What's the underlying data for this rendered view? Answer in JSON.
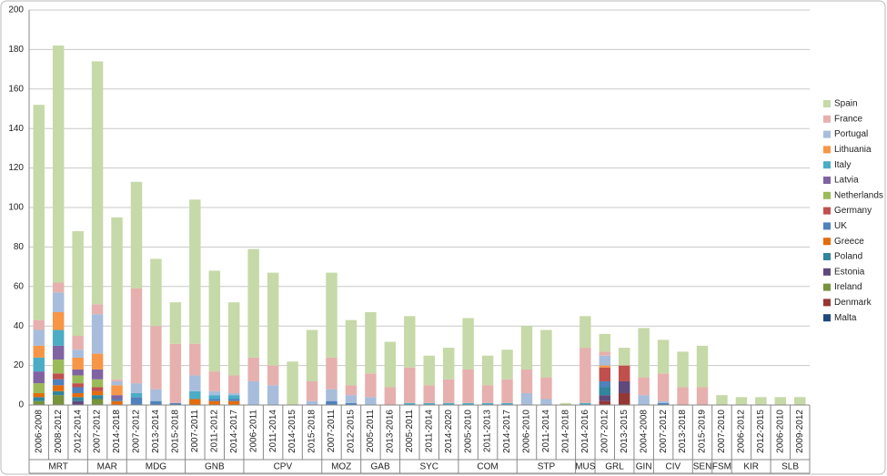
{
  "chart_data": {
    "type": "stacked-bar",
    "groups": [
      {
        "name": "MRT",
        "categories": [
          "2006-2008",
          "2008-2012",
          "2012-2014"
        ]
      },
      {
        "name": "MAR",
        "categories": [
          "2007-2012",
          "2014-2018"
        ]
      },
      {
        "name": "MDG",
        "categories": [
          "2007-2012",
          "2013-2014",
          "2015-2018"
        ]
      },
      {
        "name": "GNB",
        "categories": [
          "2007-2011",
          "2011-2012",
          "2014-2017"
        ]
      },
      {
        "name": "CPV",
        "categories": [
          "2006-2011",
          "2011-2014",
          "2014-2015",
          "2015-2018"
        ]
      },
      {
        "name": "MOZ",
        "categories": [
          "2007-2011",
          "2012-2015"
        ]
      },
      {
        "name": "GAB",
        "categories": [
          "2005-2011",
          "2013-2016"
        ]
      },
      {
        "name": "SYC",
        "categories": [
          "2005-2011",
          "2011-2014",
          "2014-2020"
        ]
      },
      {
        "name": "COM",
        "categories": [
          "2005-2010",
          "2011-2013",
          "2014-2017"
        ]
      },
      {
        "name": "STP",
        "categories": [
          "2006-2010",
          "2011-2014",
          "2014-2018"
        ]
      },
      {
        "name": "MUS",
        "categories": [
          "2014-2016"
        ]
      },
      {
        "name": "GRL",
        "categories": [
          "2007-2012",
          "2013-2015"
        ]
      },
      {
        "name": "GIN",
        "categories": [
          "2004-2008"
        ]
      },
      {
        "name": "CIV",
        "categories": [
          "2007-2012",
          "2013-2018"
        ]
      },
      {
        "name": "SEN",
        "categories": [
          "2015-2019"
        ]
      },
      {
        "name": "FSM",
        "categories": [
          "2007-2010"
        ]
      },
      {
        "name": "KIR",
        "categories": [
          "2006-2012",
          "2012-2015"
        ]
      },
      {
        "name": "SLB",
        "categories": [
          "2006-2010",
          "2009-2012"
        ]
      }
    ],
    "series": [
      {
        "name": "Malta",
        "color": "#1f497d",
        "values": [
          0,
          0,
          0,
          0,
          0,
          0,
          0,
          0,
          0,
          0,
          0,
          0,
          0,
          0,
          0,
          0,
          0,
          0,
          0,
          0,
          0,
          0,
          0,
          0,
          0,
          0,
          0,
          0,
          0,
          0,
          0,
          0,
          0,
          0,
          0,
          0,
          0,
          0,
          0,
          0
        ]
      },
      {
        "name": "Denmark",
        "color": "#953735",
        "values": [
          0,
          0,
          0,
          0,
          0,
          0,
          0,
          0,
          0,
          0,
          0,
          0,
          0,
          0,
          0,
          0,
          0,
          0,
          0,
          0,
          0,
          0,
          0,
          0,
          0,
          0,
          0,
          0,
          0,
          2,
          6,
          0,
          0,
          0,
          0,
          0,
          0,
          0,
          0,
          0
        ]
      },
      {
        "name": "Ireland",
        "color": "#77933c",
        "values": [
          2,
          5,
          0,
          3,
          0,
          0,
          0,
          0,
          0,
          0,
          0,
          0,
          0,
          0,
          0,
          0,
          0,
          0,
          0,
          0,
          0,
          0,
          0,
          0,
          0,
          0,
          0,
          0,
          0,
          0,
          0,
          0,
          0,
          0,
          0,
          0,
          0,
          0,
          0,
          0
        ]
      },
      {
        "name": "Estonia",
        "color": "#604a7b",
        "values": [
          0,
          0,
          2,
          0,
          0,
          0,
          0,
          0,
          0,
          0,
          0,
          0,
          0,
          0,
          0,
          0,
          0,
          0,
          0,
          0,
          0,
          0,
          0,
          0,
          0,
          0,
          0,
          0,
          0,
          3,
          6,
          0,
          0,
          0,
          0,
          0,
          0,
          0,
          0,
          0
        ]
      },
      {
        "name": "Poland",
        "color": "#31859c",
        "values": [
          2,
          2,
          2,
          2,
          0,
          0,
          0,
          0,
          0,
          0,
          0,
          0,
          0,
          0,
          0,
          0,
          0,
          0,
          0,
          0,
          0,
          0,
          0,
          0,
          0,
          0,
          0,
          0,
          0,
          4,
          0,
          0,
          0,
          0,
          0,
          0,
          0,
          0,
          0,
          0
        ]
      },
      {
        "name": "Greece",
        "color": "#e46c0a",
        "values": [
          2,
          3,
          2,
          2,
          2,
          0,
          0,
          0,
          3,
          2,
          2,
          0,
          0,
          0,
          0,
          0,
          0,
          0,
          0,
          0,
          0,
          0,
          0,
          0,
          0,
          0,
          0,
          0,
          0,
          0,
          0,
          0,
          0,
          0,
          0,
          0,
          0,
          0,
          0,
          0
        ]
      },
      {
        "name": "UK",
        "color": "#4f81bd",
        "values": [
          0,
          3,
          3,
          0,
          1,
          4,
          2,
          1,
          0,
          1,
          1,
          0,
          0,
          0,
          0,
          2,
          1,
          0,
          0,
          0,
          0,
          0,
          0,
          0,
          0,
          0,
          0,
          0,
          0,
          3,
          0,
          0,
          1,
          0,
          0,
          0,
          0,
          0,
          0,
          0
        ]
      },
      {
        "name": "Germany",
        "color": "#c0504d",
        "values": [
          0,
          3,
          2,
          2,
          0,
          0,
          0,
          0,
          0,
          0,
          0,
          0,
          0,
          0,
          0,
          0,
          0,
          0,
          0,
          0,
          0,
          0,
          0,
          0,
          0,
          0,
          0,
          0,
          0,
          7,
          8,
          0,
          0,
          0,
          0,
          0,
          0,
          0,
          0,
          0
        ]
      },
      {
        "name": "Netherlands",
        "color": "#9bbb59",
        "values": [
          5,
          7,
          4,
          4,
          0,
          0,
          0,
          0,
          0,
          0,
          0,
          0,
          0,
          0,
          0,
          0,
          0,
          0,
          0,
          0,
          0,
          0,
          0,
          0,
          0,
          0,
          0,
          0,
          0,
          0,
          0,
          0,
          0,
          0,
          0,
          0,
          0,
          0,
          0,
          0
        ]
      },
      {
        "name": "Latvia",
        "color": "#8064a2",
        "values": [
          6,
          7,
          3,
          5,
          2,
          0,
          0,
          0,
          0,
          0,
          0,
          0,
          0,
          0,
          0,
          0,
          0,
          0,
          0,
          0,
          0,
          0,
          0,
          0,
          0,
          0,
          0,
          0,
          0,
          0,
          0,
          0,
          0,
          0,
          0,
          0,
          0,
          0,
          0,
          0
        ]
      },
      {
        "name": "Italy",
        "color": "#4bacc6",
        "values": [
          7,
          8,
          0,
          0,
          0,
          2,
          0,
          0,
          4,
          2,
          2,
          0,
          0,
          0,
          0,
          0,
          0,
          0,
          0,
          1,
          1,
          1,
          1,
          1,
          1,
          0,
          0,
          0,
          1,
          0,
          0,
          0,
          0,
          0,
          0,
          0,
          0,
          0,
          0,
          0
        ]
      },
      {
        "name": "Lithuania",
        "color": "#f79646",
        "values": [
          6,
          9,
          6,
          8,
          5,
          0,
          0,
          0,
          0,
          0,
          0,
          0,
          0,
          0,
          0,
          0,
          0,
          0,
          0,
          0,
          0,
          0,
          0,
          0,
          0,
          0,
          0,
          0,
          0,
          1,
          0,
          0,
          0,
          0,
          0,
          0,
          0,
          0,
          0,
          0
        ]
      },
      {
        "name": "Portugal",
        "color": "#a7bddb",
        "values": [
          8,
          10,
          4,
          20,
          2,
          5,
          6,
          0,
          8,
          2,
          1,
          12,
          10,
          0,
          2,
          6,
          4,
          4,
          0,
          0,
          0,
          0,
          0,
          0,
          0,
          6,
          3,
          0,
          0,
          5,
          0,
          5,
          1,
          0,
          0,
          0,
          0,
          0,
          0,
          0
        ]
      },
      {
        "name": "France",
        "color": "#e6b0ae",
        "values": [
          5,
          5,
          7,
          5,
          1,
          48,
          32,
          30,
          16,
          10,
          9,
          12,
          10,
          0,
          10,
          16,
          5,
          12,
          9,
          18,
          9,
          12,
          17,
          9,
          12,
          12,
          11,
          0,
          28,
          2,
          0,
          9,
          14,
          9,
          9,
          0,
          0,
          0,
          0,
          0
        ]
      },
      {
        "name": "Spain",
        "color": "#c6d9a8",
        "values": [
          109,
          120,
          53,
          123,
          82,
          54,
          34,
          21,
          73,
          51,
          37,
          55,
          47,
          22,
          26,
          43,
          33,
          31,
          23,
          26,
          15,
          16,
          26,
          15,
          15,
          22,
          24,
          1,
          16,
          9,
          9,
          25,
          17,
          18,
          21,
          5,
          4,
          4,
          4,
          4
        ]
      }
    ],
    "ylim": [
      0,
      200
    ],
    "yticks": [
      0,
      20,
      40,
      60,
      80,
      100,
      120,
      140,
      160,
      180,
      200
    ],
    "grid": true,
    "legend": "right"
  }
}
